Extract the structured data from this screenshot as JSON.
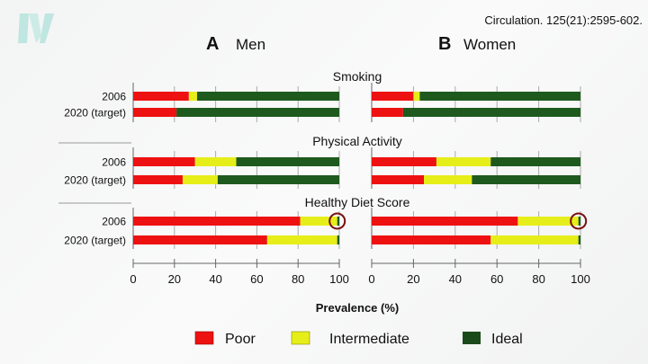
{
  "citation": "Circulation. 125(21):2595-602.",
  "logo": {
    "text": "N",
    "color": "#bfe6e0"
  },
  "colors": {
    "Poor": "#ee1111",
    "Intermediate": "#e6ee1a",
    "Ideal": "#1e5a1e"
  },
  "legend": [
    "Poor",
    "Intermediate",
    "Ideal"
  ],
  "xlabel": "Prevalence (%)",
  "chart_data": [
    {
      "type": "bar",
      "orientation": "horizontal",
      "stacked": true,
      "panel_letter": "A",
      "title": "Men",
      "xlim": [
        0,
        100
      ],
      "xticks": [
        0,
        20,
        40,
        60,
        80,
        100
      ],
      "groups": [
        {
          "title": "Smoking",
          "rows": [
            {
              "label": "2006",
              "Poor": 27,
              "Intermediate": 4,
              "Ideal": 69
            },
            {
              "label": "2020 (target)",
              "Poor": 21,
              "Intermediate": 0,
              "Ideal": 79
            }
          ]
        },
        {
          "title": "Physical Activity",
          "rows": [
            {
              "label": "2006",
              "Poor": 30,
              "Intermediate": 20,
              "Ideal": 50
            },
            {
              "label": "2020 (target)",
              "Poor": 24,
              "Intermediate": 17,
              "Ideal": 59
            }
          ]
        },
        {
          "title": "Healthy Diet Score",
          "rows": [
            {
              "label": "2006",
              "Poor": 81,
              "Intermediate": 18,
              "Ideal": 1,
              "highlighted": true
            },
            {
              "label": "2020 (target)",
              "Poor": 65,
              "Intermediate": 34,
              "Ideal": 1
            }
          ]
        }
      ]
    },
    {
      "type": "bar",
      "orientation": "horizontal",
      "stacked": true,
      "panel_letter": "B",
      "title": "Women",
      "xlim": [
        0,
        100
      ],
      "xticks": [
        0,
        20,
        40,
        60,
        80,
        100
      ],
      "groups": [
        {
          "title": "Smoking",
          "rows": [
            {
              "label": "2006",
              "Poor": 20,
              "Intermediate": 3,
              "Ideal": 77
            },
            {
              "label": "2020 (target)",
              "Poor": 15,
              "Intermediate": 0,
              "Ideal": 85
            }
          ]
        },
        {
          "title": "Physical Activity",
          "rows": [
            {
              "label": "2006",
              "Poor": 31,
              "Intermediate": 26,
              "Ideal": 43
            },
            {
              "label": "2020 (target)",
              "Poor": 25,
              "Intermediate": 23,
              "Ideal": 52
            }
          ]
        },
        {
          "title": "Healthy Diet Score",
          "rows": [
            {
              "label": "2006",
              "Poor": 70,
              "Intermediate": 29,
              "Ideal": 1,
              "highlighted": true
            },
            {
              "label": "2020 (target)",
              "Poor": 57,
              "Intermediate": 42,
              "Ideal": 1
            }
          ]
        }
      ]
    }
  ]
}
